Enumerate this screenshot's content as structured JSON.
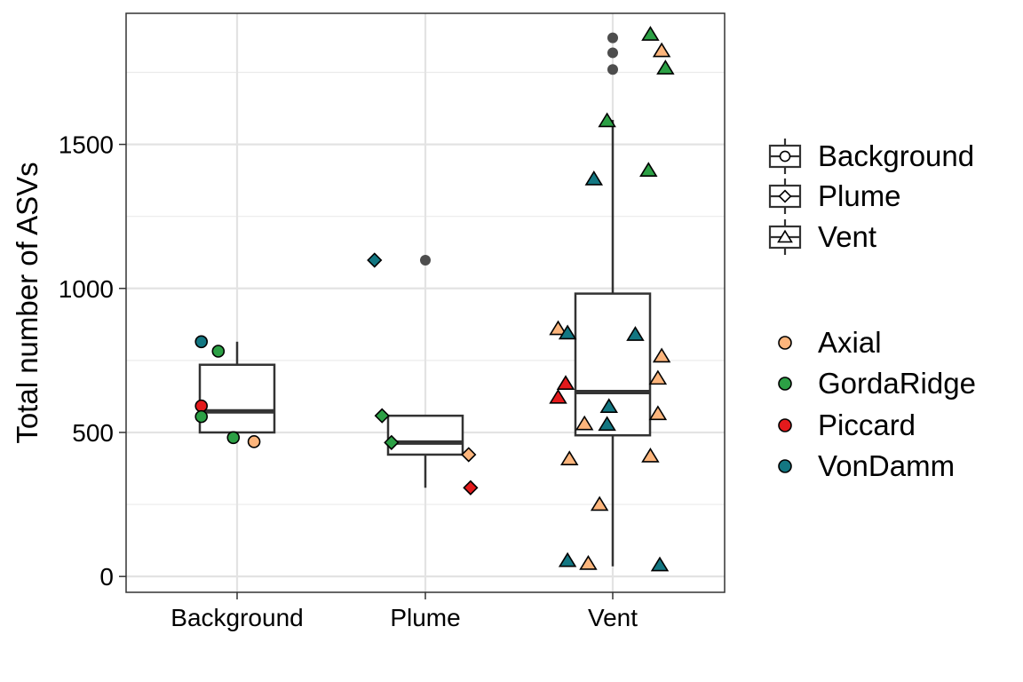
{
  "chart_data": {
    "type": "box",
    "title": "",
    "xlabel": "",
    "ylabel": "Total number of ASVs",
    "categories": [
      "Background",
      "Plume",
      "Vent"
    ],
    "yticks": [
      0,
      500,
      1000,
      1500
    ],
    "ylim": [
      -55,
      1955
    ],
    "grid": true,
    "legend_placement": "right",
    "boxes": [
      {
        "category": "Background",
        "lower_whisker": 500,
        "q1": 500,
        "median": 573,
        "q3": 735,
        "upper_whisker": 815,
        "outliers": []
      },
      {
        "category": "Plume",
        "lower_whisker": 308,
        "q1": 423,
        "median": 465,
        "q3": 558,
        "upper_whisker": 558,
        "outliers": [
          1098
        ]
      },
      {
        "category": "Vent",
        "lower_whisker": 35,
        "q1": 490,
        "median": 640,
        "q3": 982,
        "upper_whisker": 1585,
        "outliers": [
          1760,
          1818,
          1870
        ]
      }
    ],
    "shape_legend": {
      "title": "",
      "entries": [
        {
          "label": "Background",
          "shape": "circle"
        },
        {
          "label": "Plume",
          "shape": "diamond"
        },
        {
          "label": "Vent",
          "shape": "triangle"
        }
      ]
    },
    "color_legend": {
      "title": "",
      "entries": [
        {
          "label": "Axial",
          "color": "#fdb57c"
        },
        {
          "label": "GordaRidge",
          "color": "#2ca045"
        },
        {
          "label": "Piccard",
          "color": "#e41a1c"
        },
        {
          "label": "VonDamm",
          "color": "#137782"
        }
      ]
    },
    "points": [
      {
        "category": "Background",
        "jitter": -0.19,
        "y": 815,
        "site": "VonDamm"
      },
      {
        "category": "Background",
        "jitter": -0.1,
        "y": 782,
        "site": "GordaRidge"
      },
      {
        "category": "Background",
        "jitter": -0.19,
        "y": 592,
        "site": "Piccard"
      },
      {
        "category": "Background",
        "jitter": -0.19,
        "y": 555,
        "site": "GordaRidge"
      },
      {
        "category": "Background",
        "jitter": -0.02,
        "y": 482,
        "site": "GordaRidge"
      },
      {
        "category": "Background",
        "jitter": 0.09,
        "y": 468,
        "site": "Axial"
      },
      {
        "category": "Plume",
        "jitter": -0.27,
        "y": 1098,
        "site": "VonDamm"
      },
      {
        "category": "Plume",
        "jitter": -0.23,
        "y": 558,
        "site": "GordaRidge"
      },
      {
        "category": "Plume",
        "jitter": -0.18,
        "y": 465,
        "site": "GordaRidge"
      },
      {
        "category": "Plume",
        "jitter": 0.23,
        "y": 423,
        "site": "Axial"
      },
      {
        "category": "Plume",
        "jitter": 0.24,
        "y": 308,
        "site": "Piccard"
      },
      {
        "category": "Vent",
        "jitter": 0.2,
        "y": 1882,
        "site": "GordaRidge"
      },
      {
        "category": "Vent",
        "jitter": 0.26,
        "y": 1825,
        "site": "Axial"
      },
      {
        "category": "Vent",
        "jitter": 0.28,
        "y": 1765,
        "site": "GordaRidge"
      },
      {
        "category": "Vent",
        "jitter": -0.03,
        "y": 1582,
        "site": "GordaRidge"
      },
      {
        "category": "Vent",
        "jitter": 0.19,
        "y": 1410,
        "site": "GordaRidge"
      },
      {
        "category": "Vent",
        "jitter": -0.1,
        "y": 1380,
        "site": "VonDamm"
      },
      {
        "category": "Vent",
        "jitter": -0.29,
        "y": 860,
        "site": "Axial"
      },
      {
        "category": "Vent",
        "jitter": -0.24,
        "y": 845,
        "site": "VonDamm"
      },
      {
        "category": "Vent",
        "jitter": 0.12,
        "y": 840,
        "site": "VonDamm"
      },
      {
        "category": "Vent",
        "jitter": 0.26,
        "y": 765,
        "site": "Axial"
      },
      {
        "category": "Vent",
        "jitter": 0.24,
        "y": 688,
        "site": "Axial"
      },
      {
        "category": "Vent",
        "jitter": -0.25,
        "y": 670,
        "site": "Piccard"
      },
      {
        "category": "Vent",
        "jitter": -0.29,
        "y": 622,
        "site": "Piccard"
      },
      {
        "category": "Vent",
        "jitter": -0.02,
        "y": 590,
        "site": "VonDamm"
      },
      {
        "category": "Vent",
        "jitter": 0.24,
        "y": 565,
        "site": "Axial"
      },
      {
        "category": "Vent",
        "jitter": -0.15,
        "y": 530,
        "site": "Axial"
      },
      {
        "category": "Vent",
        "jitter": -0.03,
        "y": 528,
        "site": "VonDamm"
      },
      {
        "category": "Vent",
        "jitter": 0.2,
        "y": 418,
        "site": "Axial"
      },
      {
        "category": "Vent",
        "jitter": -0.23,
        "y": 408,
        "site": "Axial"
      },
      {
        "category": "Vent",
        "jitter": -0.07,
        "y": 250,
        "site": "Axial"
      },
      {
        "category": "Vent",
        "jitter": -0.24,
        "y": 55,
        "site": "VonDamm"
      },
      {
        "category": "Vent",
        "jitter": -0.13,
        "y": 45,
        "site": "Axial"
      },
      {
        "category": "Vent",
        "jitter": 0.25,
        "y": 40,
        "site": "VonDamm"
      }
    ]
  }
}
